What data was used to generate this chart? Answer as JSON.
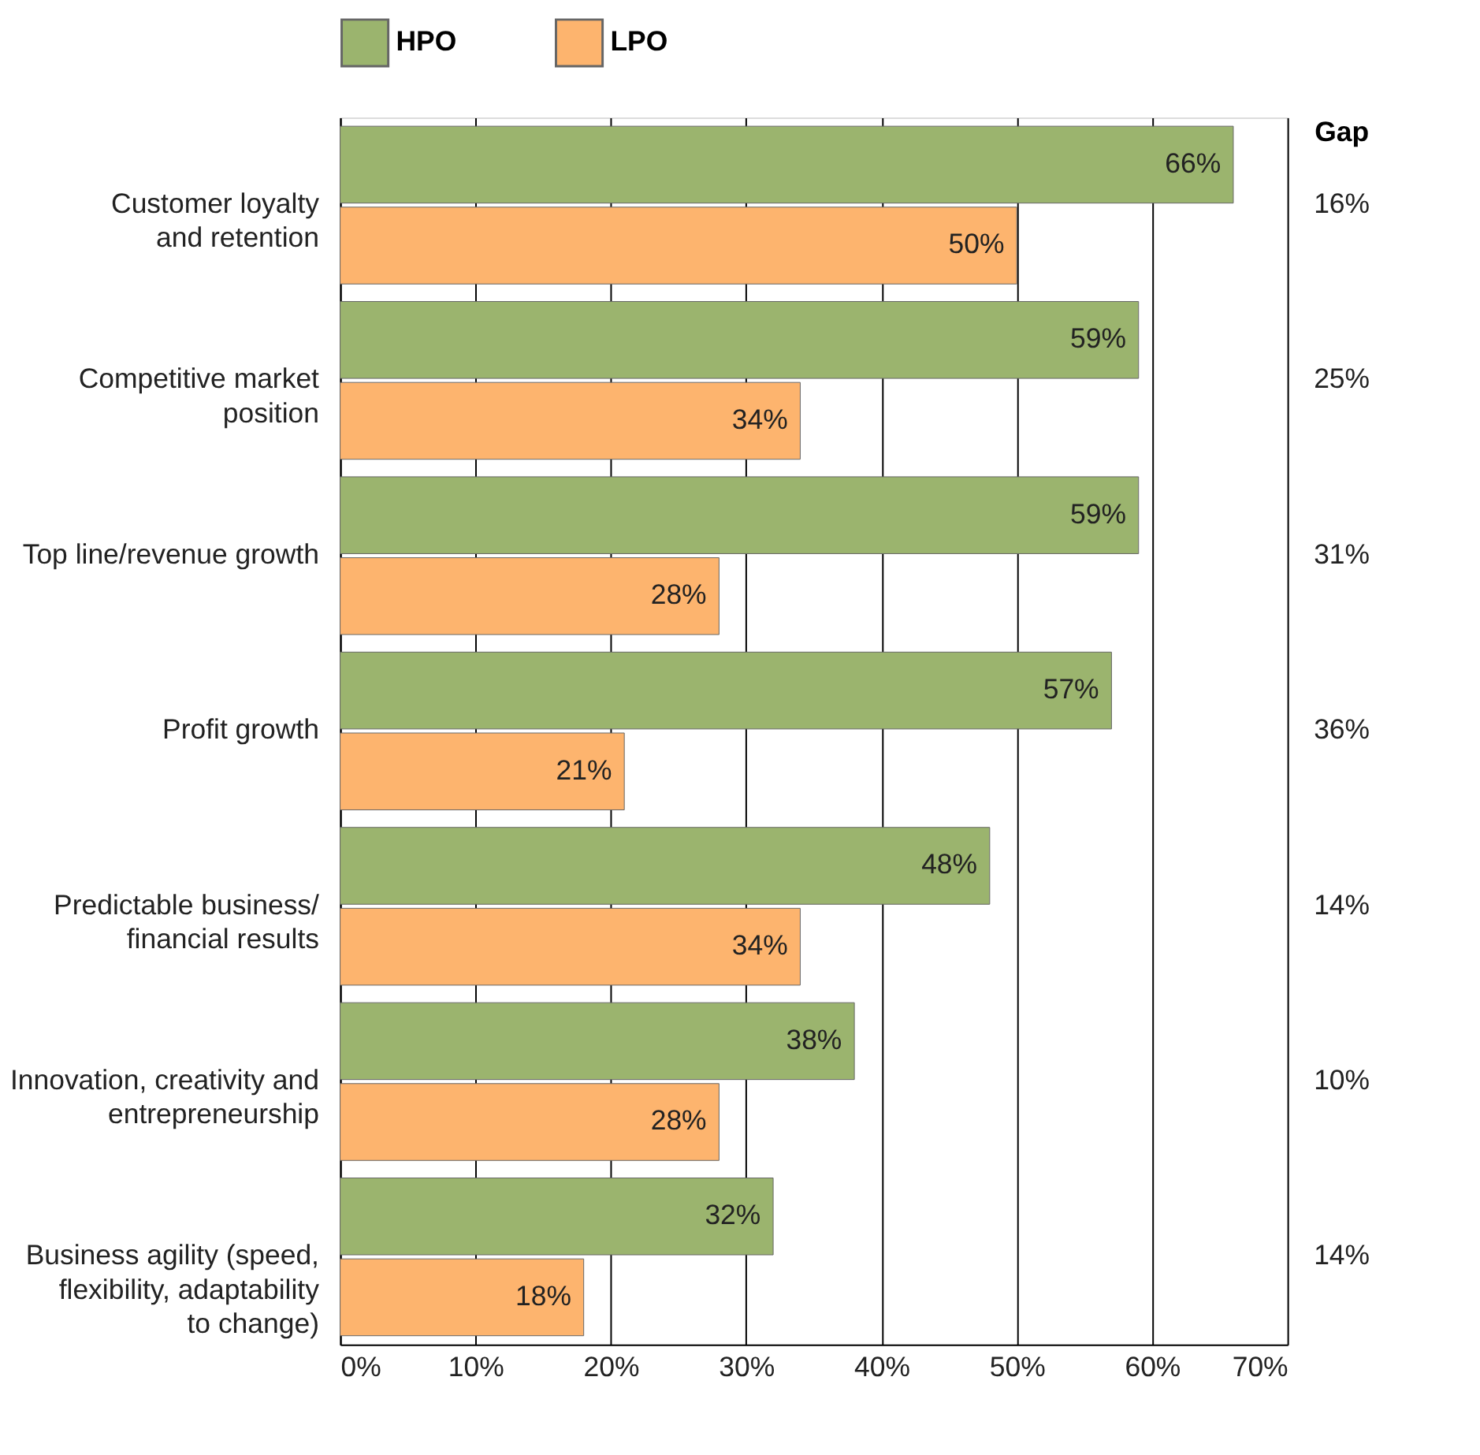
{
  "chart_data": {
    "type": "bar",
    "orientation": "horizontal",
    "categories": [
      "Customer loyalty\nand retention",
      "Competitive market\nposition",
      "Top line/revenue growth",
      "Profit growth",
      "Predictable business/\nfinancial results",
      "Innovation, creativity and\nentrepreneurship",
      "Business agility (speed,\nflexibility, adaptability\nto change)"
    ],
    "series": [
      {
        "name": "HPO",
        "color": "#9bb46e",
        "values": [
          66,
          59,
          59,
          57,
          48,
          38,
          32
        ],
        "value_labels": [
          "66%",
          "59%",
          "59%",
          "57%",
          "48%",
          "38%",
          "32%"
        ]
      },
      {
        "name": "LPO",
        "color": "#fdb46e",
        "values": [
          50,
          34,
          28,
          21,
          34,
          28,
          18
        ],
        "value_labels": [
          "50%",
          "34%",
          "28%",
          "21%",
          "34%",
          "28%",
          "18%"
        ]
      }
    ],
    "xlim": [
      0,
      70
    ],
    "xticks": [
      {
        "value": 0,
        "label": "0%"
      },
      {
        "value": 10,
        "label": "10%"
      },
      {
        "value": 20,
        "label": "20%"
      },
      {
        "value": 30,
        "label": "30%"
      },
      {
        "value": 40,
        "label": "40%"
      },
      {
        "value": 50,
        "label": "50%"
      },
      {
        "value": 60,
        "label": "60%"
      },
      {
        "value": 70,
        "label": "70%"
      }
    ],
    "grid": "x",
    "legend": "top",
    "annotations": [
      "Gap",
      "16%",
      "25%",
      "31%",
      "36%",
      "14%",
      "10%",
      "14%"
    ]
  }
}
